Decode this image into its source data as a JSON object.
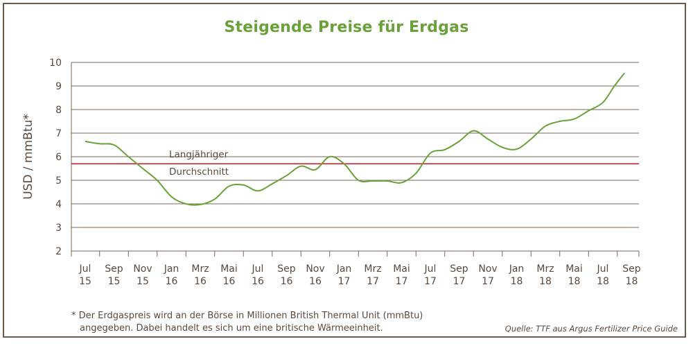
{
  "chart_data": {
    "type": "line",
    "title": "Steigende Preise für Erdgas",
    "ylabel": "USD / mmBtu*",
    "xlabel": "",
    "ylim": [
      2,
      10
    ],
    "yticks": [
      2,
      3,
      4,
      5,
      6,
      7,
      8,
      9,
      10
    ],
    "grid": true,
    "categories": [
      {
        "month": "Jul",
        "year": "15"
      },
      {
        "month": "Sep",
        "year": "15"
      },
      {
        "month": "Nov",
        "year": "15"
      },
      {
        "month": "Jan",
        "year": "16"
      },
      {
        "month": "Mrz",
        "year": "16"
      },
      {
        "month": "Mai",
        "year": "16"
      },
      {
        "month": "Jul",
        "year": "16"
      },
      {
        "month": "Sep",
        "year": "16"
      },
      {
        "month": "Nov",
        "year": "16"
      },
      {
        "month": "Jan",
        "year": "17"
      },
      {
        "month": "Mrz",
        "year": "17"
      },
      {
        "month": "Mai",
        "year": "17"
      },
      {
        "month": "Jul",
        "year": "17"
      },
      {
        "month": "Sep",
        "year": "17"
      },
      {
        "month": "Nov",
        "year": "17"
      },
      {
        "month": "Jan",
        "year": "18"
      },
      {
        "month": "Mrz",
        "year": "18"
      },
      {
        "month": "Mai",
        "year": "18"
      },
      {
        "month": "Jul",
        "year": "18"
      },
      {
        "month": "Sep",
        "year": "18"
      }
    ],
    "series": [
      {
        "color": "#6aa13a",
        "x": [
          0,
          0.5,
          1,
          1.5,
          2,
          2.5,
          3,
          3.5,
          4,
          4.5,
          5,
          5.5,
          6,
          6.5,
          7,
          7.5,
          8,
          8.5,
          9,
          9.5,
          10,
          10.5,
          11,
          11.5,
          12,
          12.5,
          13,
          13.5,
          14,
          14.5,
          15,
          15.5,
          16,
          16.5,
          17,
          17.5,
          18,
          18.4,
          18.75
        ],
        "values": [
          6.65,
          6.55,
          6.5,
          6.0,
          5.5,
          5.0,
          4.3,
          4.0,
          3.97,
          4.2,
          4.75,
          4.8,
          4.55,
          4.85,
          5.2,
          5.6,
          5.45,
          6.0,
          5.7,
          5.0,
          4.97,
          4.97,
          4.9,
          5.3,
          6.15,
          6.3,
          6.65,
          7.1,
          6.75,
          6.4,
          6.32,
          6.75,
          7.3,
          7.5,
          7.6,
          7.95,
          8.3,
          9.0,
          9.55
        ]
      }
    ],
    "reference_line": {
      "value": 5.7,
      "color": "#d9262c",
      "label_line1": "Langjähriger",
      "label_line2": "Durchschnitt"
    }
  },
  "footnote": {
    "line1": "* Der Erdgaspreis wird an der Börse in Millionen British Thermal Unit (mmBtu)",
    "line2": "angegeben. Dabei handelt es sich um eine britische Wärmeeinheit."
  },
  "source": "Quelle: TTF aus Argus Fertilizer Price Guide"
}
